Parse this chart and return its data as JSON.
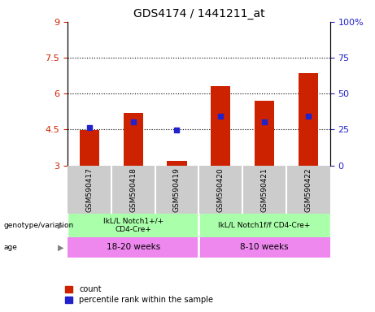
{
  "title": "GDS4174 / 1441211_at",
  "samples": [
    "GSM590417",
    "GSM590418",
    "GSM590419",
    "GSM590420",
    "GSM590421",
    "GSM590422"
  ],
  "red_values": [
    4.48,
    5.2,
    3.2,
    6.3,
    5.7,
    6.85
  ],
  "blue_values": [
    4.58,
    4.82,
    4.48,
    5.05,
    4.82,
    5.05
  ],
  "ylim_left": [
    3.0,
    9.0
  ],
  "yticks_left": [
    3.0,
    4.5,
    6.0,
    7.5,
    9.0
  ],
  "ytick_labels_left": [
    "3",
    "4.5",
    "6",
    "7.5",
    "9"
  ],
  "ylim_right": [
    0,
    100
  ],
  "yticks_right": [
    0,
    25,
    50,
    75,
    100
  ],
  "ytick_labels_right": [
    "0",
    "25",
    "50",
    "75",
    "100%"
  ],
  "hlines": [
    4.5,
    6.0,
    7.5
  ],
  "group1_genotype": "lkL/L Notch1+/+\nCD4-Cre+",
  "group2_genotype": "lkL/L Notch1f/f CD4-Cre+",
  "group1_age": "18-20 weeks",
  "group2_age": "8-10 weeks",
  "bar_color": "#cc2200",
  "marker_color": "#2222cc",
  "genotype_bg": "#aaffaa",
  "age_bg": "#ee88ee",
  "sample_bg": "#cccccc",
  "legend_count": "count",
  "legend_percentile": "percentile rank within the sample"
}
